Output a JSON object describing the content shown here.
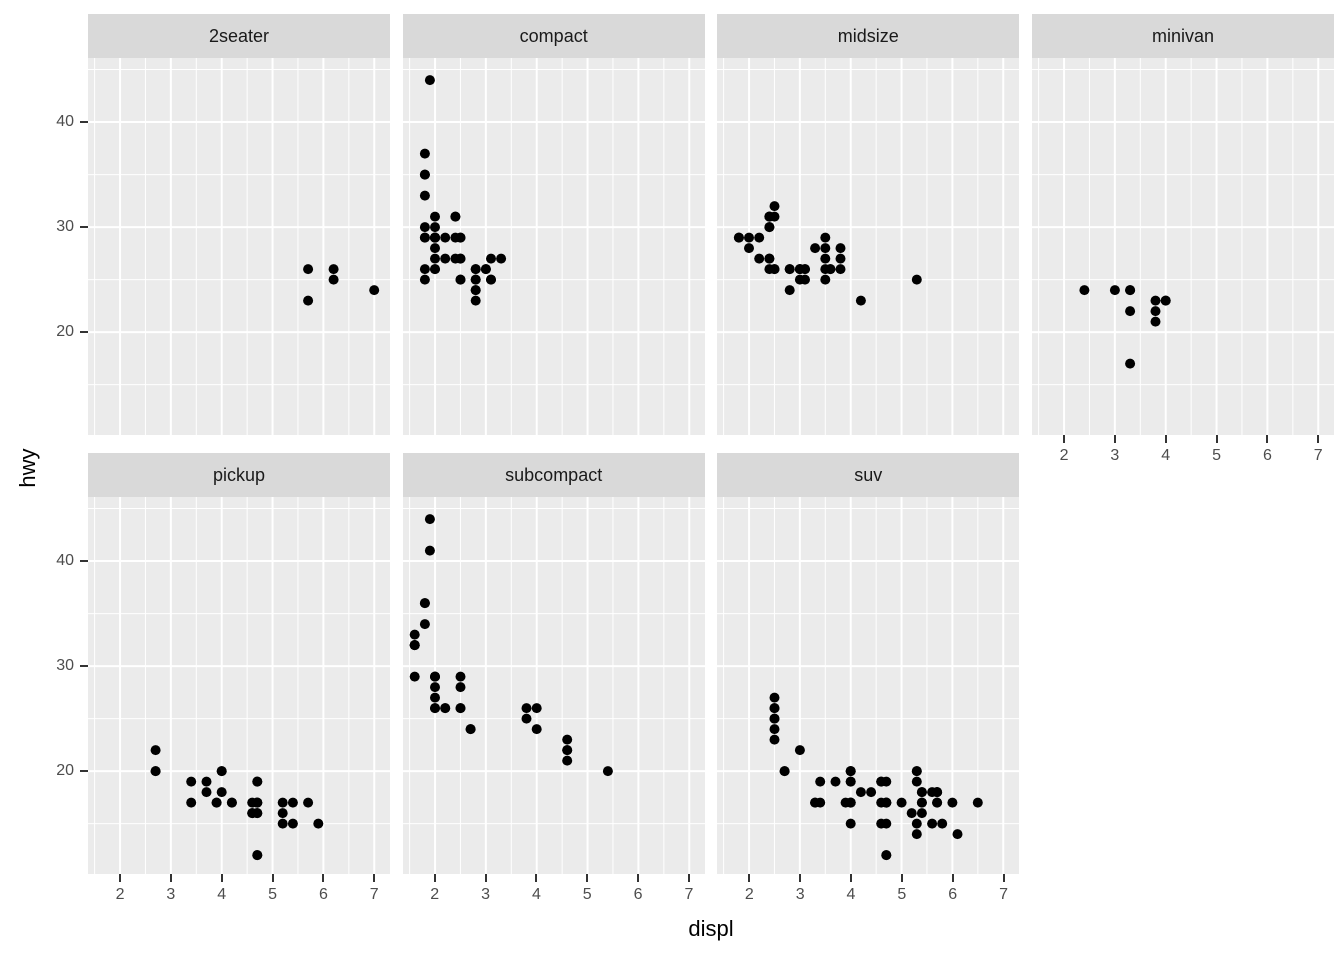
{
  "chart_data": {
    "type": "scatter",
    "title": "",
    "xlabel": "displ",
    "ylabel": "hwy",
    "x_ticks": [
      2,
      3,
      4,
      5,
      6,
      7
    ],
    "y_ticks": [
      20,
      30,
      40
    ],
    "x_minor": [
      1.5,
      2.5,
      3.5,
      4.5,
      5.5,
      6.5
    ],
    "y_minor": [
      15,
      25,
      35,
      45
    ],
    "xlim": [
      1.37,
      7.31
    ],
    "ylim": [
      10.2,
      46.1
    ],
    "grid": "on",
    "legend": "none",
    "point_radius_px": 5,
    "colors": {
      "page_bg": "#FFFFFF",
      "panel_bg": "#EBEBEB",
      "strip_bg": "#D9D9D9",
      "gridline": "#FFFFFF",
      "point": "#000000",
      "tick_text": "#4D4D4D",
      "tick_mark": "#333333",
      "strip_text": "#1A1A1A",
      "axis_title_text": "#000000"
    },
    "facets": [
      {
        "label": "2seater",
        "points": [
          [
            5.7,
            26
          ],
          [
            5.7,
            23
          ],
          [
            6.2,
            26
          ],
          [
            6.2,
            25
          ],
          [
            7.0,
            24
          ]
        ]
      },
      {
        "label": "compact",
        "points": [
          [
            1.8,
            29
          ],
          [
            1.8,
            29
          ],
          [
            2.0,
            31
          ],
          [
            2.0,
            30
          ],
          [
            2.8,
            26
          ],
          [
            2.8,
            26
          ],
          [
            3.1,
            27
          ],
          [
            1.8,
            26
          ],
          [
            1.8,
            25
          ],
          [
            2.0,
            28
          ],
          [
            2.0,
            27
          ],
          [
            2.8,
            25
          ],
          [
            2.8,
            25
          ],
          [
            3.1,
            25
          ],
          [
            3.1,
            25
          ],
          [
            2.4,
            29
          ],
          [
            2.4,
            27
          ],
          [
            2.5,
            25
          ],
          [
            2.5,
            27
          ],
          [
            2.5,
            25
          ],
          [
            2.5,
            27
          ],
          [
            2.2,
            27
          ],
          [
            2.2,
            29
          ],
          [
            2.4,
            31
          ],
          [
            2.4,
            31
          ],
          [
            3.0,
            26
          ],
          [
            3.0,
            26
          ],
          [
            3.3,
            27
          ],
          [
            1.8,
            30
          ],
          [
            1.8,
            33
          ],
          [
            1.8,
            35
          ],
          [
            1.8,
            37
          ],
          [
            1.8,
            35
          ],
          [
            2.0,
            29
          ],
          [
            2.0,
            26
          ],
          [
            2.0,
            29
          ],
          [
            2.0,
            29
          ],
          [
            2.8,
            24
          ],
          [
            1.9,
            44
          ],
          [
            2.0,
            29
          ],
          [
            2.0,
            26
          ],
          [
            2.0,
            29
          ],
          [
            2.0,
            29
          ],
          [
            2.5,
            29
          ],
          [
            2.5,
            29
          ],
          [
            2.8,
            23
          ],
          [
            2.8,
            24
          ]
        ]
      },
      {
        "label": "midsize",
        "points": [
          [
            2.8,
            24
          ],
          [
            3.1,
            25
          ],
          [
            4.2,
            23
          ],
          [
            2.4,
            27
          ],
          [
            2.4,
            30
          ],
          [
            3.1,
            26
          ],
          [
            3.5,
            29
          ],
          [
            3.6,
            26
          ],
          [
            2.4,
            26
          ],
          [
            2.4,
            27
          ],
          [
            2.4,
            30
          ],
          [
            2.4,
            31
          ],
          [
            2.5,
            26
          ],
          [
            2.5,
            26
          ],
          [
            3.3,
            28
          ],
          [
            2.5,
            31
          ],
          [
            2.5,
            32
          ],
          [
            3.5,
            27
          ],
          [
            3.5,
            26
          ],
          [
            3.0,
            26
          ],
          [
            3.0,
            25
          ],
          [
            3.5,
            25
          ],
          [
            3.1,
            26
          ],
          [
            3.8,
            26
          ],
          [
            3.8,
            27
          ],
          [
            3.8,
            28
          ],
          [
            5.3,
            25
          ],
          [
            2.2,
            29
          ],
          [
            2.2,
            27
          ],
          [
            2.4,
            31
          ],
          [
            2.4,
            31
          ],
          [
            3.0,
            26
          ],
          [
            3.0,
            26
          ],
          [
            3.5,
            28
          ],
          [
            1.8,
            29
          ],
          [
            1.8,
            29
          ],
          [
            2.0,
            28
          ],
          [
            2.0,
            29
          ],
          [
            2.8,
            26
          ],
          [
            2.8,
            26
          ],
          [
            3.6,
            26
          ]
        ]
      },
      {
        "label": "minivan",
        "points": [
          [
            2.4,
            24
          ],
          [
            3.0,
            24
          ],
          [
            3.3,
            24
          ],
          [
            3.3,
            24
          ],
          [
            3.3,
            22
          ],
          [
            3.3,
            17
          ],
          [
            3.8,
            23
          ],
          [
            3.8,
            22
          ],
          [
            3.8,
            21
          ],
          [
            4.0,
            23
          ],
          [
            4.0,
            23
          ]
        ]
      },
      {
        "label": "pickup",
        "points": [
          [
            2.7,
            22
          ],
          [
            2.7,
            20
          ],
          [
            2.7,
            20
          ],
          [
            3.4,
            19
          ],
          [
            3.4,
            17
          ],
          [
            3.7,
            19
          ],
          [
            3.7,
            18
          ],
          [
            3.9,
            17
          ],
          [
            3.9,
            17
          ],
          [
            4.0,
            20
          ],
          [
            4.0,
            20
          ],
          [
            4.0,
            18
          ],
          [
            4.2,
            17
          ],
          [
            4.2,
            17
          ],
          [
            4.6,
            17
          ],
          [
            4.6,
            16
          ],
          [
            4.6,
            16
          ],
          [
            4.7,
            19
          ],
          [
            4.7,
            19
          ],
          [
            4.7,
            17
          ],
          [
            4.7,
            17
          ],
          [
            4.7,
            17
          ],
          [
            4.7,
            16
          ],
          [
            4.7,
            16
          ],
          [
            4.7,
            12
          ],
          [
            4.7,
            12
          ],
          [
            5.2,
            17
          ],
          [
            5.2,
            16
          ],
          [
            5.2,
            15
          ],
          [
            5.4,
            17
          ],
          [
            5.4,
            15
          ],
          [
            5.7,
            17
          ],
          [
            5.9,
            15
          ]
        ]
      },
      {
        "label": "subcompact",
        "points": [
          [
            3.8,
            26
          ],
          [
            3.8,
            25
          ],
          [
            4.0,
            26
          ],
          [
            4.0,
            24
          ],
          [
            4.6,
            23
          ],
          [
            4.6,
            22
          ],
          [
            4.6,
            22
          ],
          [
            4.6,
            21
          ],
          [
            5.4,
            20
          ],
          [
            1.6,
            33
          ],
          [
            1.6,
            32
          ],
          [
            1.6,
            32
          ],
          [
            1.6,
            32
          ],
          [
            1.6,
            32
          ],
          [
            1.6,
            29
          ],
          [
            1.8,
            34
          ],
          [
            1.8,
            36
          ],
          [
            1.8,
            36
          ],
          [
            2.0,
            29
          ],
          [
            2.0,
            26
          ],
          [
            2.0,
            29
          ],
          [
            2.0,
            28
          ],
          [
            2.0,
            27
          ],
          [
            2.7,
            24
          ],
          [
            2.7,
            24
          ],
          [
            2.2,
            26
          ],
          [
            2.2,
            26
          ],
          [
            2.5,
            26
          ],
          [
            2.5,
            26
          ],
          [
            1.9,
            44
          ],
          [
            1.9,
            41
          ],
          [
            2.0,
            29
          ],
          [
            2.0,
            26
          ],
          [
            2.5,
            28
          ],
          [
            2.5,
            29
          ]
        ]
      },
      {
        "label": "suv",
        "points": [
          [
            2.5,
            27
          ],
          [
            2.5,
            26
          ],
          [
            2.5,
            26
          ],
          [
            2.5,
            25
          ],
          [
            2.5,
            25
          ],
          [
            2.5,
            24
          ],
          [
            2.5,
            23
          ],
          [
            2.7,
            20
          ],
          [
            2.7,
            20
          ],
          [
            3.0,
            22
          ],
          [
            3.3,
            17
          ],
          [
            3.3,
            17
          ],
          [
            3.4,
            17
          ],
          [
            3.4,
            19
          ],
          [
            3.7,
            19
          ],
          [
            3.9,
            17
          ],
          [
            4.0,
            20
          ],
          [
            4.0,
            20
          ],
          [
            4.0,
            20
          ],
          [
            4.0,
            19
          ],
          [
            4.0,
            19
          ],
          [
            4.0,
            17
          ],
          [
            4.0,
            17
          ],
          [
            4.0,
            17
          ],
          [
            4.0,
            15
          ],
          [
            4.2,
            18
          ],
          [
            4.4,
            18
          ],
          [
            4.6,
            19
          ],
          [
            4.6,
            19
          ],
          [
            4.6,
            17
          ],
          [
            4.6,
            15
          ],
          [
            4.7,
            19
          ],
          [
            4.7,
            17
          ],
          [
            4.7,
            17
          ],
          [
            4.7,
            17
          ],
          [
            4.7,
            17
          ],
          [
            4.7,
            15
          ],
          [
            4.7,
            12
          ],
          [
            4.7,
            12
          ],
          [
            5.0,
            17
          ],
          [
            5.2,
            16
          ],
          [
            5.4,
            16
          ],
          [
            5.3,
            20
          ],
          [
            5.3,
            20
          ],
          [
            5.3,
            19
          ],
          [
            5.3,
            15
          ],
          [
            5.3,
            14
          ],
          [
            5.4,
            18
          ],
          [
            5.4,
            18
          ],
          [
            5.4,
            17
          ],
          [
            5.4,
            17
          ],
          [
            5.6,
            18
          ],
          [
            5.6,
            15
          ],
          [
            5.7,
            18
          ],
          [
            5.7,
            18
          ],
          [
            5.7,
            18
          ],
          [
            5.7,
            17
          ],
          [
            5.7,
            17
          ],
          [
            5.8,
            15
          ],
          [
            6.0,
            17
          ],
          [
            6.1,
            14
          ],
          [
            6.5,
            17
          ]
        ]
      }
    ]
  }
}
